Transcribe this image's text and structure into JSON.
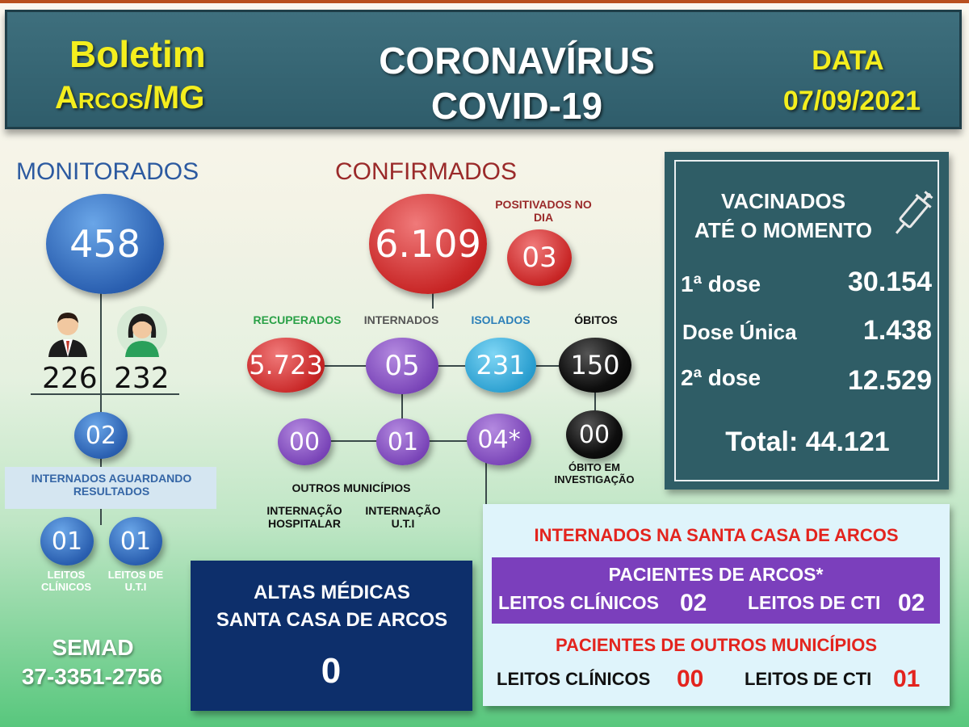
{
  "header": {
    "boletim": "Boletim",
    "city": "Arcos/MG",
    "title1": "CORONAVÍRUS",
    "title2": "COVID-19",
    "date_label": "DATA",
    "date": "07/09/2021"
  },
  "monitorados": {
    "title": "MONITORADOS",
    "total": "458",
    "men": "226",
    "women": "232",
    "internados": "02",
    "internados_label": "INTERNADOS AGUARDANDO RESULTADOS",
    "leitos_clinicos": "01",
    "leitos_uti": "01",
    "leitos_clinicos_label": "LEITOS CLÍNICOS",
    "leitos_uti_label": "LEITOS DE U.T.I",
    "icons": [
      "man-avatar-icon",
      "woman-avatar-icon"
    ]
  },
  "confirmados": {
    "title": "CONFIRMADOS",
    "total": "6.109",
    "positivados_label": "POSITIVADOS NO DIA",
    "positivados": "03",
    "recuperados_label": "RECUPERADOS",
    "recuperados": "5.723",
    "internados_label": "INTERNADOS",
    "internados": "05",
    "isolados_label": "ISOLADOS",
    "isolados": "231",
    "obitos_label": "ÓBITOS",
    "obitos": "150",
    "outros_municipios": "00",
    "internacao_hospitalar": "01",
    "internacao_uti": "04*",
    "obito_investigacao": "00",
    "outros_label": "OUTROS MUNICÍPIOS",
    "hosp_label": "INTERNAÇÃO HOSPITALAR",
    "uti_label": "INTERNAÇÃO U.T.I",
    "obito_inv_label": "ÓBITO EM INVESTIGAÇÃO"
  },
  "vacinados": {
    "title1": "VACINADOS",
    "title2": "ATÉ O MOMENTO",
    "dose1_label": "1ª dose",
    "dose1": "30.154",
    "unica_label": "Dose Única",
    "unica": "1.438",
    "dose2_label": "2ª dose",
    "dose2": "12.529",
    "total": "Total: 44.121",
    "icon": "syringe-icon"
  },
  "semad": {
    "name": "SEMAD",
    "phone": "37-3351-2756"
  },
  "altas": {
    "line1": "ALTAS MÉDICAS",
    "line2": "SANTA CASA DE ARCOS",
    "value": "0"
  },
  "santa_casa": {
    "title": "INTERNADOS NA SANTA CASA DE ARCOS",
    "arcos_title": "PACIENTES DE ARCOS*",
    "arcos_clinicos_label": "LEITOS CLÍNICOS",
    "arcos_clinicos": "02",
    "arcos_cti_label": "LEITOS DE CTI",
    "arcos_cti": "02",
    "outros_title": "PACIENTES DE OUTROS MUNICÍPIOS",
    "outros_clinicos_label": "LEITOS CLÍNICOS",
    "outros_clinicos": "00",
    "outros_cti_label": "LEITOS DE CTI",
    "outros_cti": "01"
  }
}
